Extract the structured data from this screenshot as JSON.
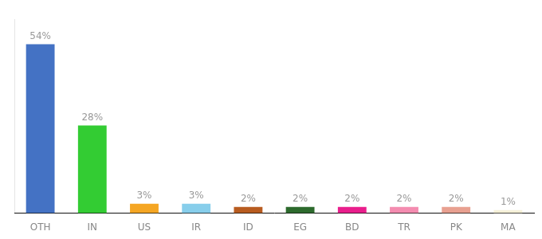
{
  "chart_data": {
    "type": "bar",
    "categories": [
      "OTH",
      "IN",
      "US",
      "IR",
      "ID",
      "EG",
      "BD",
      "TR",
      "PK",
      "MA"
    ],
    "values": [
      54,
      28,
      3,
      3,
      2,
      2,
      2,
      2,
      2,
      1
    ],
    "value_labels": [
      "54%",
      "28%",
      "3%",
      "3%",
      "2%",
      "2%",
      "2%",
      "2%",
      "2%",
      "1%"
    ],
    "colors": [
      "#4472c4",
      "#33cc33",
      "#f5a623",
      "#87ceeb",
      "#b85c20",
      "#2d6a2d",
      "#e91e8c",
      "#f48cb0",
      "#e8a090",
      "#f5f0d8"
    ],
    "ylim": [
      0,
      62
    ],
    "grid": false,
    "data_labels": true,
    "tick_labels": "x"
  }
}
